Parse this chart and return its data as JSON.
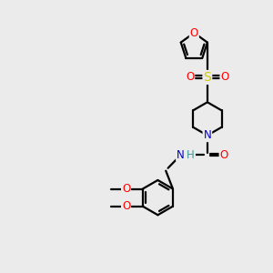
{
  "bg_color": "#ebebeb",
  "bond_color": "#000000",
  "bond_width": 1.6,
  "atom_colors": {
    "O": "#ff0000",
    "N": "#0000cc",
    "S": "#cccc00",
    "H": "#3d9999",
    "C": "#000000"
  },
  "font_size": 8.5,
  "figsize": [
    3.0,
    3.0
  ],
  "dpi": 100,
  "xlim": [
    0,
    10
  ],
  "ylim": [
    0,
    10
  ]
}
